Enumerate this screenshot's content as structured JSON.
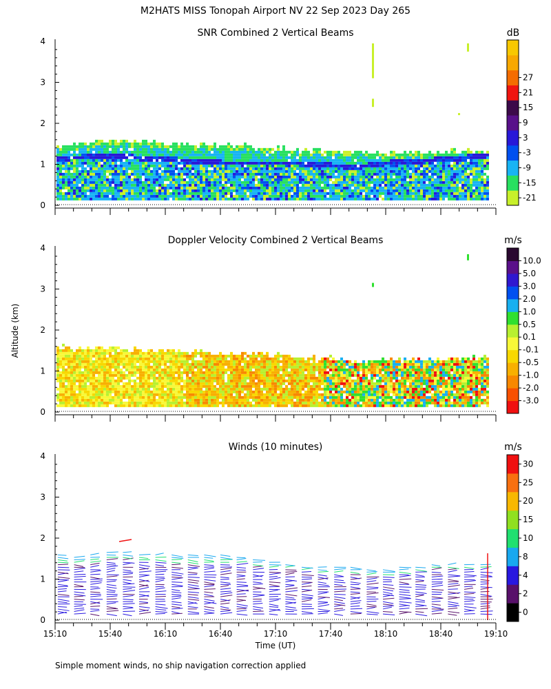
{
  "title": "M2HATS MISS Tonopah Airport NV  22 Sep 2023 Day 265",
  "ylabel": "Altitude (km)",
  "xlabel": "Time (UT)",
  "footnote": "Simple moment winds, no ship navigation correction applied",
  "chart_data": [
    {
      "type": "heatmap",
      "title": "SNR Combined 2 Vertical Beams",
      "unit": "dB",
      "ylim": [
        0,
        4
      ],
      "yticks": [
        "0",
        "1",
        "2",
        "3",
        "4"
      ],
      "xticks": [
        "15:10",
        "15:40",
        "16:10",
        "16:40",
        "17:10",
        "17:40",
        "18:10",
        "18:40",
        "19:10"
      ],
      "colorbar": {
        "labels": [
          "-21",
          "-15",
          "-9",
          "-3",
          "3",
          "9",
          "15",
          "21",
          "27"
        ],
        "colors": [
          "#c8f02a",
          "#28e060",
          "#18b4f4",
          "#0050f0",
          "#2818d8",
          "#58108a",
          "#3c0a4a",
          "#f01410",
          "#f46c00",
          "#f8a800",
          "#f8c800"
        ]
      },
      "echo_top_km": [
        1.45,
        1.5,
        1.55,
        1.5,
        1.45,
        1.45,
        1.4,
        1.35,
        1.3,
        1.3,
        1.25,
        1.25,
        1.3,
        1.3
      ],
      "inversion_km": [
        1.1,
        1.15,
        1.15,
        1.1,
        1.05,
        1.0,
        1.0,
        1.0,
        0.95,
        0.9,
        1.0,
        1.05,
        1.1,
        1.2
      ]
    },
    {
      "type": "heatmap",
      "title": "Doppler Velocity Combined 2 Vertical Beams",
      "unit": "m/s",
      "ylim": [
        0,
        4
      ],
      "yticks": [
        "0",
        "1",
        "2",
        "3",
        "4"
      ],
      "xticks": [
        "15:10",
        "15:40",
        "16:10",
        "16:40",
        "17:10",
        "17:40",
        "18:10",
        "18:40",
        "19:10"
      ],
      "colorbar": {
        "labels": [
          "-3.0",
          "-2.0",
          "-1.0",
          "-0.5",
          "-0.1",
          "0.1",
          "0.5",
          "1.0",
          "2.0",
          "3.0",
          "5.0",
          "10.0"
        ],
        "colors": [
          "#f01010",
          "#f85000",
          "#f88800",
          "#f8b000",
          "#f8d800",
          "#f8f838",
          "#b8f030",
          "#30e030",
          "#18b0f0",
          "#0050f0",
          "#3018d0",
          "#5a108a",
          "#2a0830"
        ]
      },
      "echo_top_km": [
        1.55,
        1.55,
        1.5,
        1.5,
        1.45,
        1.4,
        1.4,
        1.35,
        1.3,
        1.2,
        1.25,
        1.25,
        1.3,
        1.3
      ]
    },
    {
      "type": "scatter",
      "title": "Winds (10 minutes)",
      "unit": "m/s",
      "ylim": [
        0,
        4
      ],
      "yticks": [
        "0",
        "1",
        "2",
        "3",
        "4"
      ],
      "xticks": [
        "15:10",
        "15:40",
        "16:10",
        "16:40",
        "17:10",
        "17:40",
        "18:10",
        "18:40",
        "19:10"
      ],
      "colorbar": {
        "labels": [
          "0",
          "2",
          "4",
          "8",
          "10",
          "15",
          "20",
          "25",
          "30"
        ],
        "colors": [
          "#000000",
          "#58106a",
          "#2818e0",
          "#18a8f0",
          "#20e070",
          "#90e020",
          "#f8b800",
          "#f87010",
          "#f01010"
        ]
      },
      "profiles_km_top": [
        1.6,
        1.55,
        1.6,
        1.7,
        1.7,
        1.65,
        1.65,
        1.6,
        1.6,
        1.6,
        1.6,
        1.55,
        1.5,
        1.45,
        1.4,
        1.35,
        1.3,
        1.3,
        1.3,
        1.25,
        1.25,
        1.3,
        1.35,
        1.4,
        1.4,
        1.4,
        1.4
      ]
    }
  ]
}
